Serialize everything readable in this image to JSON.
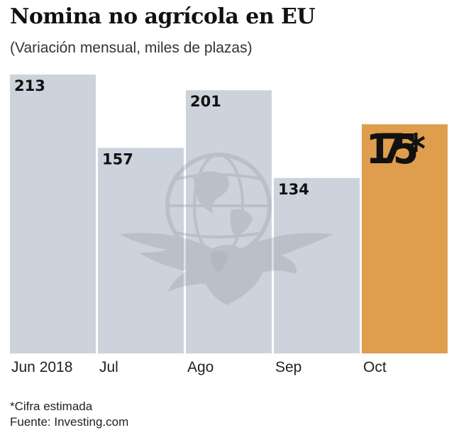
{
  "chart_data": {
    "type": "bar",
    "title": "Nomina no agrícola en EU",
    "subtitle": "(Variación mensual, miles de plazas)",
    "categories": [
      "Jun 2018",
      "Jul",
      "Ago",
      "Sep",
      "Oct"
    ],
    "values": [
      213,
      157,
      201,
      134,
      175
    ],
    "value_labels": [
      "213",
      "157",
      "201",
      "134",
      "175*"
    ],
    "highlight_index": 4,
    "ylim": [
      0,
      213
    ],
    "xlabel": "",
    "ylabel": "",
    "grid": false
  },
  "colors": {
    "bar": "#cdd3dc",
    "highlight": "#df9d4e",
    "watermark": "#aeb4bd"
  },
  "footnote": {
    "note": "*Cifra estimada",
    "source": "Fuente: Investing.com"
  }
}
